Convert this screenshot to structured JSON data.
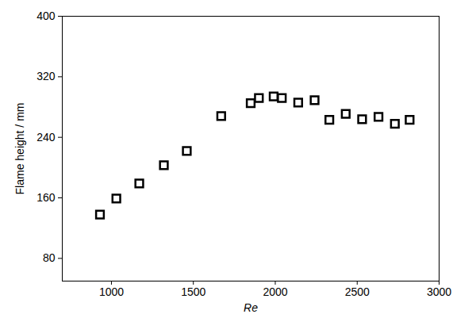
{
  "chart_data": {
    "type": "scatter",
    "x_label": "Re",
    "y_label": "Flame height / mm",
    "series": [
      {
        "name": "Flame height",
        "color": "#000000",
        "marker": "square",
        "x": [
          930,
          1030,
          1170,
          1320,
          1460,
          1670,
          1850,
          1900,
          1990,
          2040,
          2140,
          2240,
          2330,
          2430,
          2530,
          2630,
          2730,
          2820
        ],
        "values": [
          138,
          159,
          179,
          203,
          222,
          268,
          285,
          292,
          294,
          292,
          286,
          289,
          263,
          271,
          264,
          267,
          258,
          263
        ]
      }
    ],
    "xlim": [
      700,
      3000
    ],
    "xticks": [
      1000,
      1500,
      2000,
      2500,
      3000
    ],
    "ylim": [
      50,
      400
    ],
    "yticks": [
      80,
      160,
      240,
      320,
      400
    ],
    "grid": false
  }
}
